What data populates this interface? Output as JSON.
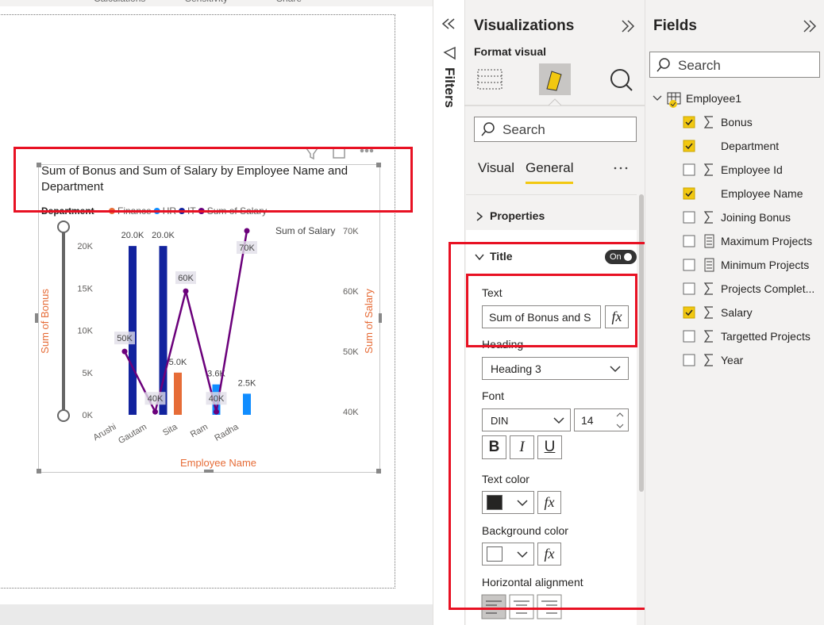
{
  "ribbon_tabs": [
    "Calculations",
    "Sensitivity",
    "Share"
  ],
  "visual": {
    "type": "combo",
    "title": "Sum of Bonus and Sum of Salary by Employee Name and Department",
    "legend_title": "Department",
    "categories": [
      "Arushi",
      "Gautam",
      "Sita",
      "Ram",
      "Radha"
    ],
    "series": [
      {
        "name": "Finance",
        "color": "#e66c37",
        "type": "bar",
        "values": [
          null,
          null,
          5000,
          null,
          null
        ],
        "value_labels": [
          null,
          null,
          "5.0K",
          null,
          null
        ]
      },
      {
        "name": "HR",
        "color": "#118dff",
        "type": "bar",
        "values": [
          null,
          null,
          null,
          3600,
          2500
        ],
        "value_labels": [
          null,
          null,
          null,
          "3.6K",
          "2.5K"
        ]
      },
      {
        "name": "IT",
        "color": "#12239e",
        "type": "bar",
        "values": [
          20000,
          20000,
          null,
          null,
          null
        ],
        "value_labels": [
          "20.0K",
          "20.0K",
          null,
          null,
          null
        ]
      },
      {
        "name": "Sum of Salary",
        "color": "#6b007b",
        "type": "line",
        "axis": "y2",
        "values": [
          50000,
          40000,
          60000,
          40000,
          70000
        ],
        "value_labels": [
          "50K",
          "40K",
          "60K",
          "40K",
          "70K"
        ]
      }
    ],
    "x_label": "Employee Name",
    "y_label": "Sum of Bonus",
    "y2_label": "Sum of Salary",
    "ylim": [
      0,
      21800
    ],
    "yticks": [
      {
        "value": 0,
        "label": "0K"
      },
      {
        "value": 5000,
        "label": "5K"
      },
      {
        "value": 10000,
        "label": "10K"
      },
      {
        "value": 15000,
        "label": "15K"
      },
      {
        "value": 20000,
        "label": "20K"
      }
    ],
    "y2lim": [
      39500,
      70000
    ],
    "y2ticks": [
      {
        "value": 40000,
        "label": "40K"
      },
      {
        "value": 50000,
        "label": "50K"
      },
      {
        "value": 60000,
        "label": "60K"
      },
      {
        "value": 70000,
        "label": "70K"
      }
    ]
  },
  "filters_pane": {
    "title": "Filters"
  },
  "visualizations_pane": {
    "title": "Visualizations",
    "subtitle": "Format visual",
    "search_placeholder": "Search",
    "tabs": [
      "Visual",
      "General"
    ],
    "active_tab": 1,
    "properties_label": "Properties",
    "title_section": {
      "label": "Title",
      "toggle": "On",
      "text_label": "Text",
      "text_value": "Sum of Bonus and S",
      "heading_label": "Heading",
      "heading_value": "Heading 3",
      "font_label": "Font",
      "font_family": "DIN",
      "font_size": 14,
      "font_styles": [
        "B",
        "I",
        "U"
      ],
      "text_color_label": "Text color",
      "text_color": "#252423",
      "background_color_label": "Background color",
      "background_color": "#ffffff",
      "fx": "fx",
      "alignment_label": "Horizontal alignment"
    }
  },
  "fields_pane": {
    "title": "Fields",
    "search_placeholder": "Search",
    "table": "Employee1",
    "fields": [
      {
        "name": "Bonus",
        "checked": true,
        "icon": "sum"
      },
      {
        "name": "Department",
        "checked": true,
        "icon": "none"
      },
      {
        "name": "Employee Id",
        "checked": false,
        "icon": "sum"
      },
      {
        "name": "Employee Name",
        "checked": true,
        "icon": "none"
      },
      {
        "name": "Joining Bonus",
        "checked": false,
        "icon": "sum"
      },
      {
        "name": "Maximum Projects",
        "checked": false,
        "icon": "calc"
      },
      {
        "name": "Minimum Projects",
        "checked": false,
        "icon": "calc"
      },
      {
        "name": "Projects Complet...",
        "checked": false,
        "icon": "sum"
      },
      {
        "name": "Salary",
        "checked": true,
        "icon": "sum"
      },
      {
        "name": "Targetted Projects",
        "checked": false,
        "icon": "sum"
      },
      {
        "name": "Year",
        "checked": false,
        "icon": "sum"
      }
    ]
  }
}
